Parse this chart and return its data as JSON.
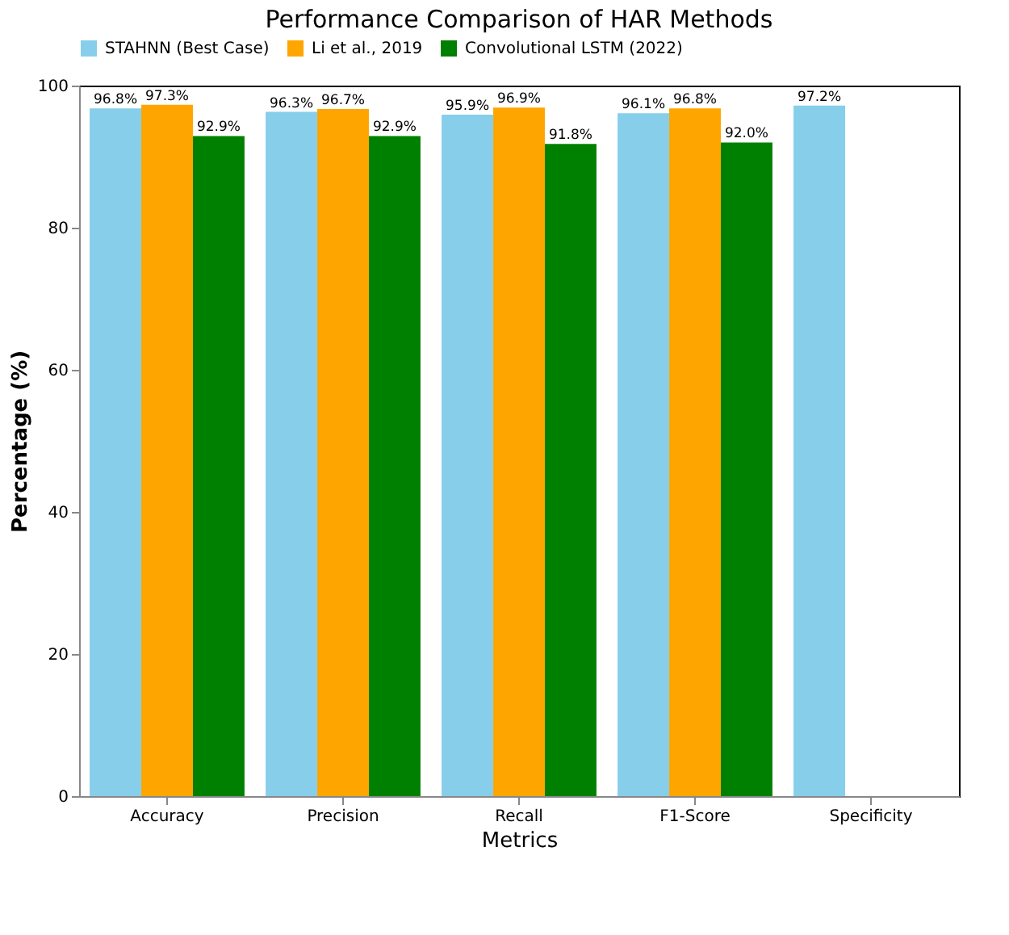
{
  "chart_data": {
    "type": "bar",
    "title": "Performance Comparison of HAR Methods",
    "xlabel": "Metrics",
    "ylabel": "Percentage (%)",
    "categories": [
      "Accuracy",
      "Precision",
      "Recall",
      "F1-Score",
      "Specificity"
    ],
    "series": [
      {
        "name": "STAHNN (Best Case)",
        "color": "#87ceeb",
        "values": [
          96.8,
          96.3,
          95.9,
          96.1,
          97.2
        ],
        "value_labels": [
          "96.8%",
          "96.3%",
          "95.9%",
          "96.1%",
          "97.2%"
        ]
      },
      {
        "name": "Li et al., 2019",
        "color": "#ffa500",
        "values": [
          97.3,
          96.7,
          96.9,
          96.8,
          null
        ],
        "value_labels": [
          "97.3%",
          "96.7%",
          "96.9%",
          "96.8%",
          null
        ]
      },
      {
        "name": "Convolutional LSTM (2022)",
        "color": "#008000",
        "values": [
          92.9,
          92.9,
          91.8,
          92.0,
          null
        ],
        "value_labels": [
          "92.9%",
          "92.9%",
          "91.8%",
          "92.0%",
          null
        ]
      }
    ],
    "ylim": [
      0,
      100
    ],
    "yticks": [
      0,
      20,
      40,
      60,
      80,
      100
    ],
    "grid": false,
    "legend": "top"
  }
}
